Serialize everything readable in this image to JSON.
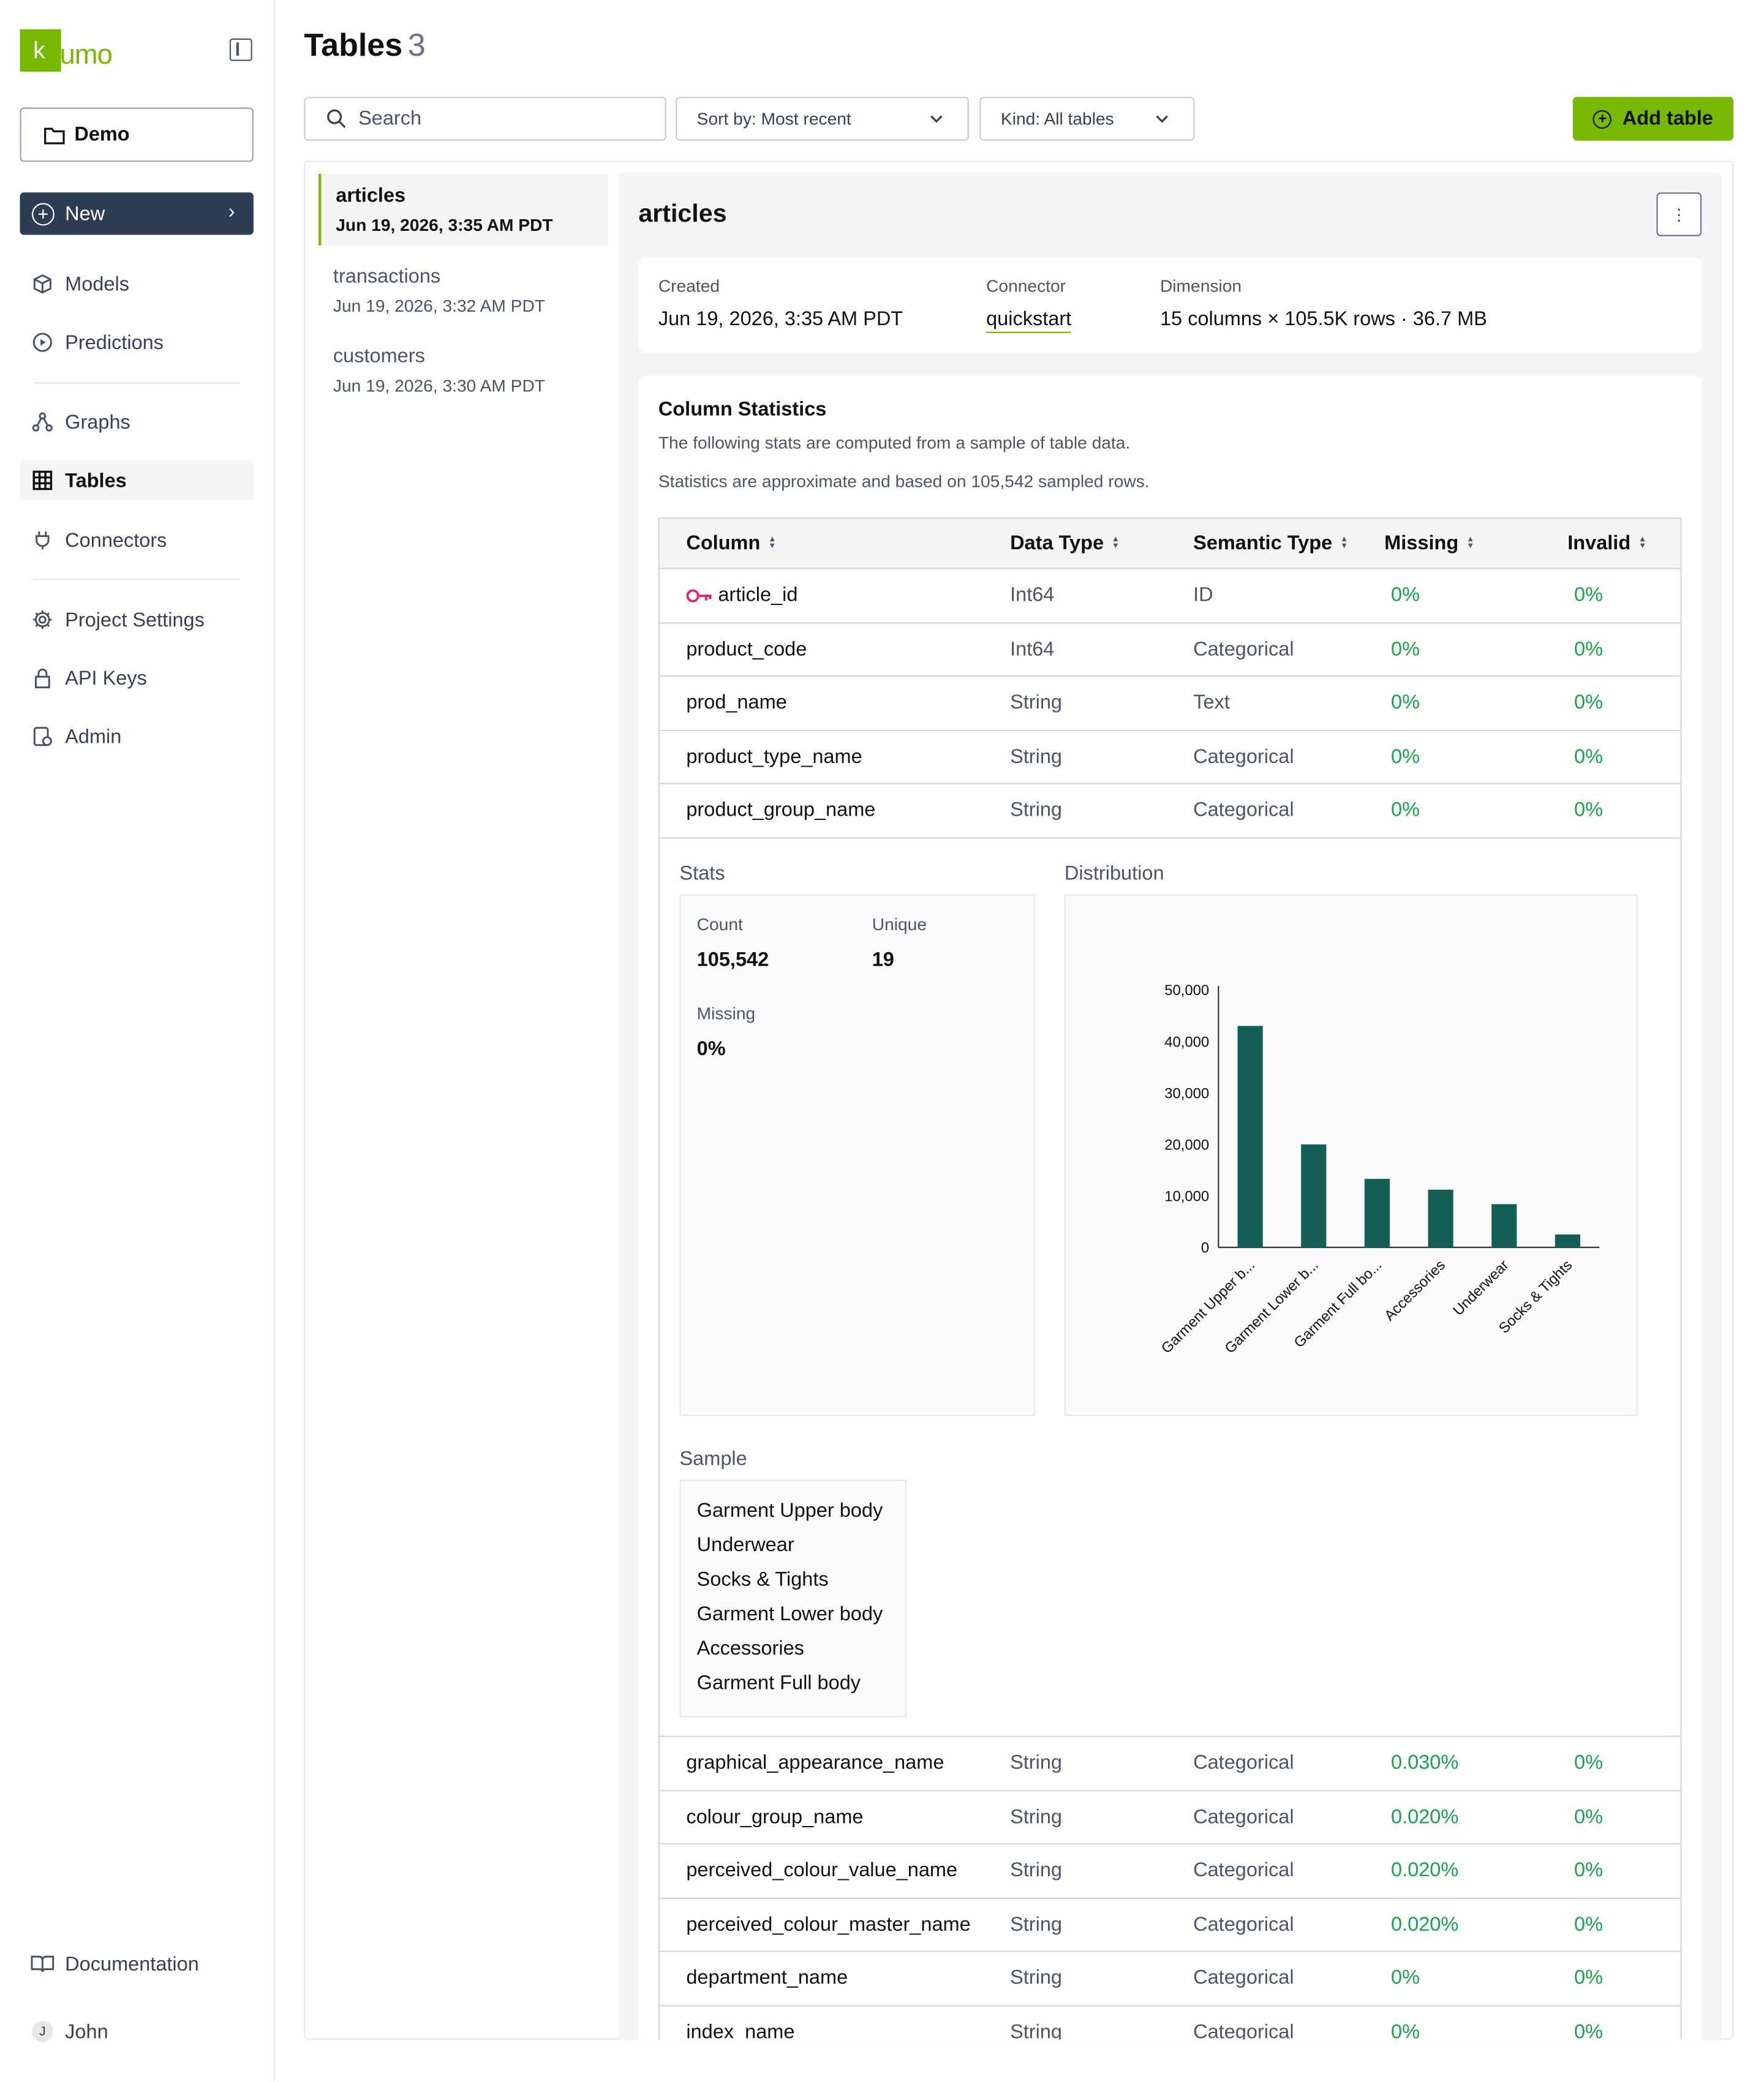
{
  "app": {
    "logo_letter": "k",
    "logo_text": "umo"
  },
  "sidebar": {
    "project": "Demo",
    "new_label": "New",
    "items": [
      {
        "label": "Models",
        "icon": "cube-icon"
      },
      {
        "label": "Predictions",
        "icon": "play-circle-icon"
      },
      {
        "label": "Graphs",
        "icon": "graph-icon"
      },
      {
        "label": "Tables",
        "icon": "table-icon"
      },
      {
        "label": "Connectors",
        "icon": "plug-icon"
      },
      {
        "label": "Project Settings",
        "icon": "gear-icon"
      },
      {
        "label": "API Keys",
        "icon": "lock-icon"
      },
      {
        "label": "Admin",
        "icon": "admin-icon"
      }
    ],
    "documentation": "Documentation",
    "user_initial": "J",
    "user_name": "John"
  },
  "header": {
    "title": "Tables",
    "count": "3",
    "search_placeholder": "Search",
    "sort_label": "Sort by: Most recent",
    "kind_label": "Kind: All tables",
    "add_label": "Add table"
  },
  "tables_list": [
    {
      "name": "articles",
      "date": "Jun 19, 2026, 3:35 AM PDT"
    },
    {
      "name": "transactions",
      "date": "Jun 19, 2026, 3:32 AM PDT"
    },
    {
      "name": "customers",
      "date": "Jun 19, 2026, 3:30 AM PDT"
    }
  ],
  "detail": {
    "title": "articles",
    "menu_glyph": "⋮",
    "created_label": "Created",
    "created": "Jun 19, 2026, 3:35 AM PDT",
    "connector_label": "Connector",
    "connector": "quickstart",
    "dimension_label": "Dimension",
    "dimension": "15 columns × 105.5K rows · 36.7 MB",
    "stats_title": "Column Statistics",
    "stats_sub1": "The following stats are computed from a sample of table data.",
    "stats_sub2": "Statistics are approximate and based on 105,542 sampled rows."
  },
  "columns_header": {
    "column": "Column",
    "data_type": "Data Type",
    "semantic_type": "Semantic Type",
    "missing": "Missing",
    "invalid": "Invalid"
  },
  "rows_top": [
    {
      "column": "article_id",
      "data_type": "Int64",
      "semantic_type": "ID",
      "missing": "0%",
      "invalid": "0%"
    },
    {
      "column": "product_code",
      "data_type": "Int64",
      "semantic_type": "Categorical",
      "missing": "0%",
      "invalid": "0%"
    },
    {
      "column": "prod_name",
      "data_type": "String",
      "semantic_type": "Text",
      "missing": "0%",
      "invalid": "0%"
    },
    {
      "column": "product_type_name",
      "data_type": "String",
      "semantic_type": "Categorical",
      "missing": "0%",
      "invalid": "0%"
    },
    {
      "column": "product_group_name",
      "data_type": "String",
      "semantic_type": "Categorical",
      "missing": "0%",
      "invalid": "0%"
    }
  ],
  "rows_bottom": [
    {
      "column": "graphical_appearance_name",
      "data_type": "String",
      "semantic_type": "Categorical",
      "missing": "0.030%",
      "invalid": "0%"
    },
    {
      "column": "colour_group_name",
      "data_type": "String",
      "semantic_type": "Categorical",
      "missing": "0.020%",
      "invalid": "0%"
    },
    {
      "column": "perceived_colour_value_name",
      "data_type": "String",
      "semantic_type": "Categorical",
      "missing": "0.020%",
      "invalid": "0%"
    },
    {
      "column": "perceived_colour_master_name",
      "data_type": "String",
      "semantic_type": "Categorical",
      "missing": "0.020%",
      "invalid": "0%"
    },
    {
      "column": "department_name",
      "data_type": "String",
      "semantic_type": "Categorical",
      "missing": "0%",
      "invalid": "0%"
    },
    {
      "column": "index_name",
      "data_type": "String",
      "semantic_type": "Categorical",
      "missing": "0%",
      "invalid": "0%"
    }
  ],
  "expanded": {
    "stats_label": "Stats",
    "distribution_label": "Distribution",
    "sample_label": "Sample",
    "count_label": "Count",
    "count": "105,542",
    "unique_label": "Unique",
    "unique": "19",
    "missing_label": "Missing",
    "missing": "0%",
    "samples": [
      "Garment Upper body",
      "Underwear",
      "Socks & Tights",
      "Garment Lower body",
      "Accessories",
      "Garment Full body"
    ]
  },
  "chart_data": {
    "type": "bar",
    "categories": [
      "Garment Upper b...",
      "Garment Lower b...",
      "Garment Full bo...",
      "Accessories",
      "Underwear",
      "Socks & Tights"
    ],
    "values": [
      43000,
      20000,
      13300,
      11200,
      8400,
      2500
    ],
    "ylim": [
      0,
      50000
    ],
    "yticks": [
      "0",
      "10,000",
      "20,000",
      "30,000",
      "40,000",
      "50,000"
    ],
    "title": "",
    "xlabel": "",
    "ylabel": "",
    "bar_color": "#135f55"
  },
  "colors": {
    "accent": "#76b900",
    "nav_dark": "#2d3d54",
    "ok": "#16a34a",
    "key": "#db2777"
  }
}
